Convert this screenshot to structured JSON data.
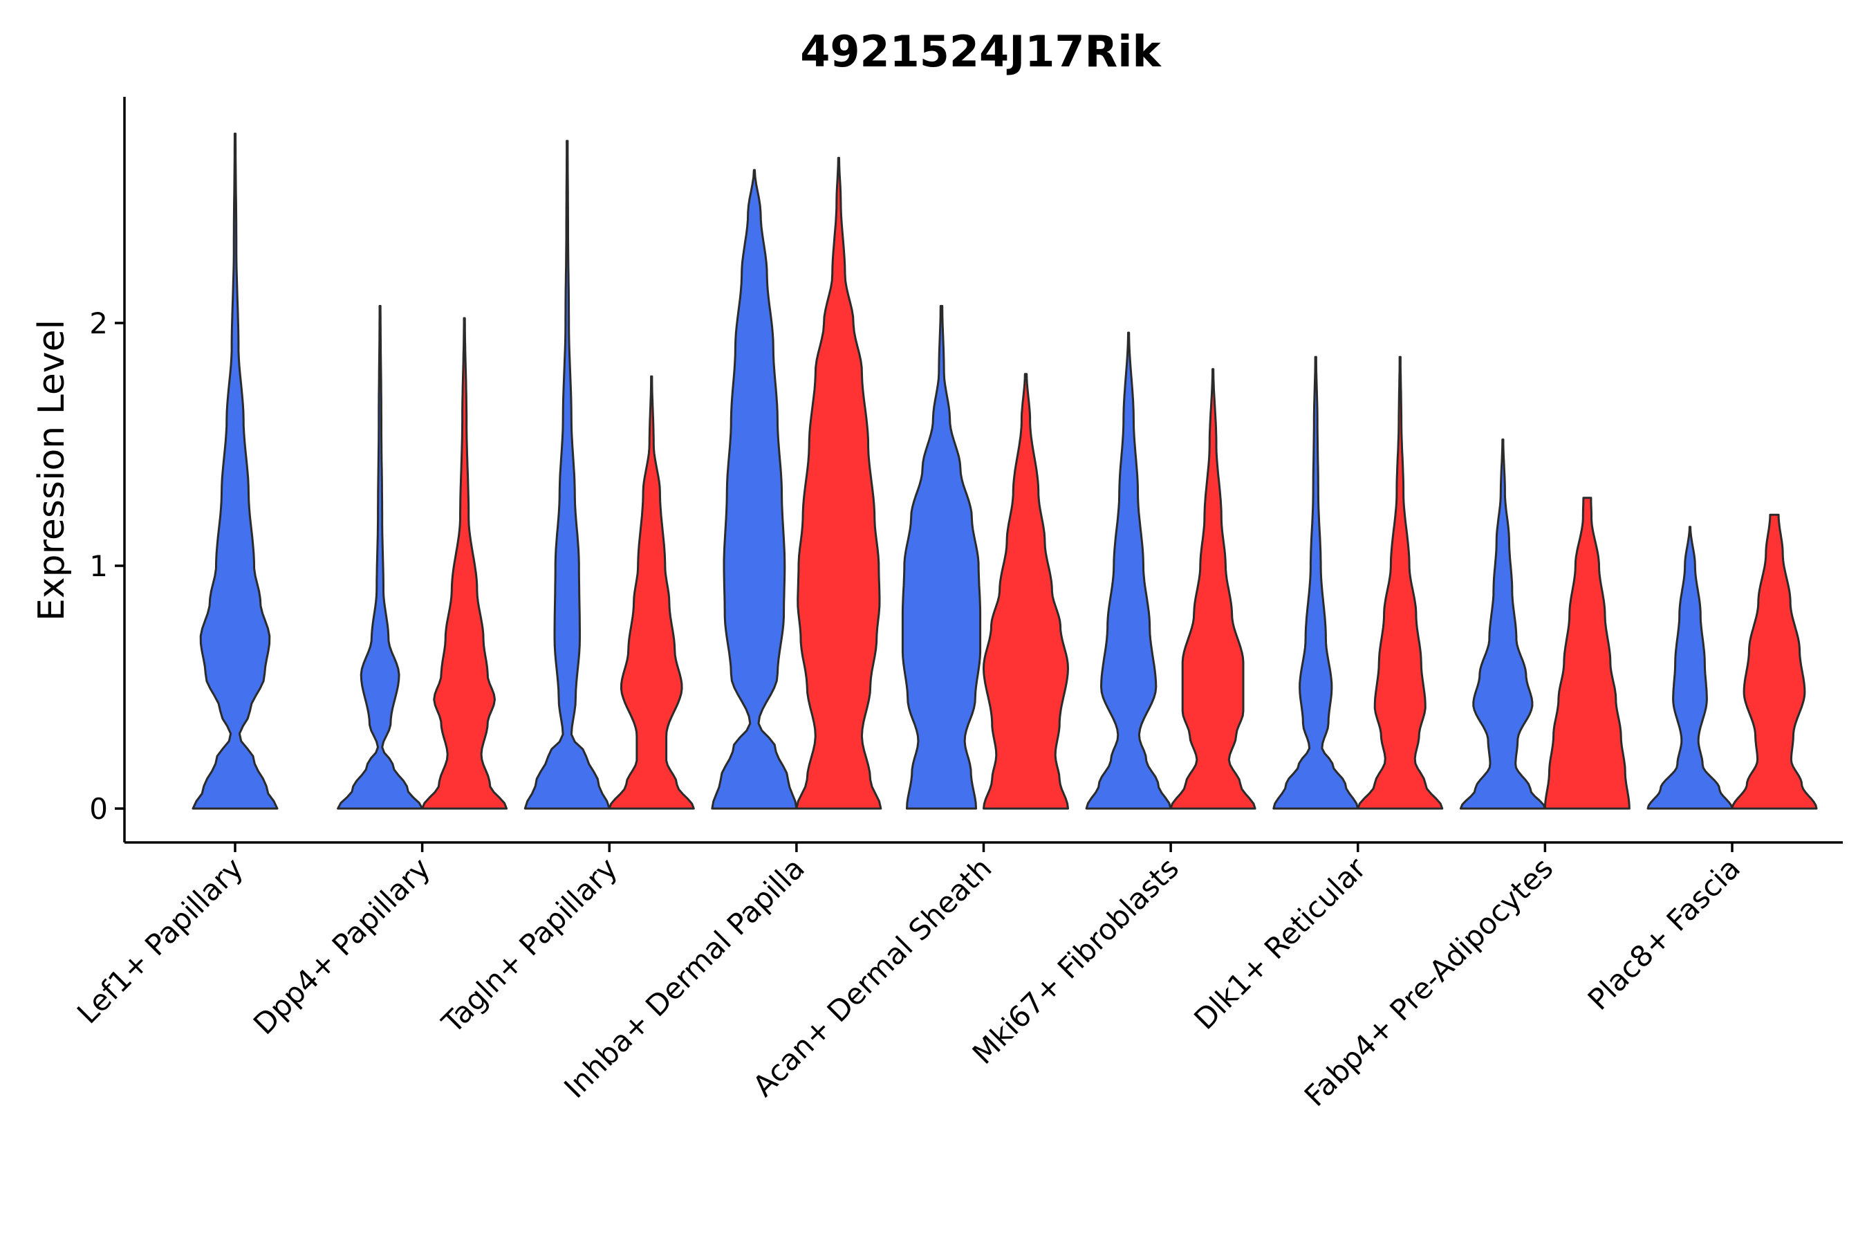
{
  "chart_data": {
    "type": "violin",
    "title": "4921524J17Rik",
    "xlabel": "",
    "ylabel": "Expression Level",
    "ylim": [
      -0.14,
      2.95
    ],
    "yticks": [
      0,
      1,
      2
    ],
    "grid": false,
    "legend": "none",
    "colors": {
      "blue": "#4471EE",
      "red": "#FF3333"
    },
    "categories": [
      "Lef1+ Papillary",
      "Dpp4+ Papillary",
      "Tagln+ Papillary",
      "Inhba+ Dermal Papilla",
      "Acan+ Dermal Sheath",
      "Mki67+ Fibroblasts",
      "Dlk1+ Reticular",
      "Fabp4+ Pre-Adipocytes",
      "Plac8+ Fascia"
    ],
    "series": [
      {
        "color": "blue",
        "violins": [
          {
            "max": 2.78,
            "density": [
              [
                0,
                1.0
              ],
              [
                0.08,
                0.75
              ],
              [
                0.2,
                0.45
              ],
              [
                0.3,
                0.1
              ],
              [
                0.4,
                0.35
              ],
              [
                0.55,
                0.7
              ],
              [
                0.7,
                0.82
              ],
              [
                0.85,
                0.6
              ],
              [
                1.0,
                0.45
              ],
              [
                1.3,
                0.32
              ],
              [
                1.6,
                0.2
              ],
              [
                1.9,
                0.08
              ],
              [
                2.3,
                0.03
              ],
              [
                2.78,
                0.01
              ]
            ]
          },
          {
            "max": 2.07,
            "density": [
              [
                0,
                1.0
              ],
              [
                0.08,
                0.65
              ],
              [
                0.18,
                0.3
              ],
              [
                0.25,
                0.05
              ],
              [
                0.35,
                0.25
              ],
              [
                0.55,
                0.45
              ],
              [
                0.7,
                0.2
              ],
              [
                0.9,
                0.08
              ],
              [
                1.2,
                0.05
              ],
              [
                1.6,
                0.03
              ],
              [
                2.07,
                0.01
              ]
            ]
          },
          {
            "max": 2.75,
            "density": [
              [
                0,
                1.0
              ],
              [
                0.1,
                0.75
              ],
              [
                0.22,
                0.45
              ],
              [
                0.3,
                0.1
              ],
              [
                0.45,
                0.2
              ],
              [
                0.7,
                0.3
              ],
              [
                1.0,
                0.28
              ],
              [
                1.3,
                0.18
              ],
              [
                1.6,
                0.1
              ],
              [
                2.0,
                0.04
              ],
              [
                2.4,
                0.02
              ],
              [
                2.75,
                0.01
              ]
            ]
          },
          {
            "max": 2.63,
            "density": [
              [
                0,
                1.0
              ],
              [
                0.12,
                0.8
              ],
              [
                0.25,
                0.5
              ],
              [
                0.35,
                0.1
              ],
              [
                0.55,
                0.55
              ],
              [
                0.8,
                0.7
              ],
              [
                1.0,
                0.72
              ],
              [
                1.3,
                0.65
              ],
              [
                1.6,
                0.55
              ],
              [
                1.9,
                0.45
              ],
              [
                2.2,
                0.3
              ],
              [
                2.45,
                0.15
              ],
              [
                2.63,
                0.01
              ]
            ]
          },
          {
            "max": 2.07,
            "density": [
              [
                0,
                0.82
              ],
              [
                0.15,
                0.7
              ],
              [
                0.28,
                0.55
              ],
              [
                0.45,
                0.8
              ],
              [
                0.65,
                0.92
              ],
              [
                0.8,
                0.92
              ],
              [
                1.0,
                0.88
              ],
              [
                1.2,
                0.72
              ],
              [
                1.4,
                0.45
              ],
              [
                1.6,
                0.2
              ],
              [
                1.8,
                0.06
              ],
              [
                2.07,
                0.02
              ]
            ]
          },
          {
            "max": 1.96,
            "density": [
              [
                0,
                1.0
              ],
              [
                0.1,
                0.7
              ],
              [
                0.2,
                0.42
              ],
              [
                0.3,
                0.25
              ],
              [
                0.5,
                0.65
              ],
              [
                0.75,
                0.5
              ],
              [
                1.0,
                0.35
              ],
              [
                1.3,
                0.22
              ],
              [
                1.6,
                0.12
              ],
              [
                1.96,
                0.01
              ]
            ]
          },
          {
            "max": 1.86,
            "density": [
              [
                0,
                1.0
              ],
              [
                0.1,
                0.7
              ],
              [
                0.18,
                0.4
              ],
              [
                0.25,
                0.15
              ],
              [
                0.35,
                0.3
              ],
              [
                0.5,
                0.38
              ],
              [
                0.7,
                0.24
              ],
              [
                1.0,
                0.12
              ],
              [
                1.3,
                0.06
              ],
              [
                1.6,
                0.04
              ],
              [
                1.86,
                0.01
              ]
            ]
          },
          {
            "max": 1.52,
            "density": [
              [
                0,
                1.0
              ],
              [
                0.08,
                0.65
              ],
              [
                0.18,
                0.3
              ],
              [
                0.28,
                0.35
              ],
              [
                0.43,
                0.7
              ],
              [
                0.55,
                0.55
              ],
              [
                0.7,
                0.32
              ],
              [
                0.9,
                0.22
              ],
              [
                1.1,
                0.15
              ],
              [
                1.3,
                0.05
              ],
              [
                1.52,
                0.01
              ]
            ]
          },
          {
            "max": 1.16,
            "density": [
              [
                0,
                1.0
              ],
              [
                0.08,
                0.7
              ],
              [
                0.18,
                0.3
              ],
              [
                0.28,
                0.2
              ],
              [
                0.45,
                0.4
              ],
              [
                0.6,
                0.35
              ],
              [
                0.8,
                0.25
              ],
              [
                1.0,
                0.12
              ],
              [
                1.16,
                0.01
              ]
            ]
          }
        ]
      },
      {
        "color": "red",
        "violins": [
          null,
          {
            "max": 2.02,
            "density": [
              [
                0,
                1.0
              ],
              [
                0.1,
                0.6
              ],
              [
                0.22,
                0.4
              ],
              [
                0.35,
                0.55
              ],
              [
                0.45,
                0.72
              ],
              [
                0.55,
                0.55
              ],
              [
                0.7,
                0.45
              ],
              [
                0.9,
                0.3
              ],
              [
                1.2,
                0.1
              ],
              [
                1.6,
                0.05
              ],
              [
                2.02,
                0.01
              ]
            ]
          },
          {
            "max": 1.78,
            "density": [
              [
                0,
                1.0
              ],
              [
                0.1,
                0.6
              ],
              [
                0.2,
                0.35
              ],
              [
                0.3,
                0.35
              ],
              [
                0.5,
                0.72
              ],
              [
                0.65,
                0.55
              ],
              [
                0.85,
                0.42
              ],
              [
                1.0,
                0.32
              ],
              [
                1.3,
                0.2
              ],
              [
                1.5,
                0.05
              ],
              [
                1.78,
                0.01
              ]
            ]
          },
          {
            "max": 2.68,
            "density": [
              [
                0,
                1.0
              ],
              [
                0.12,
                0.75
              ],
              [
                0.3,
                0.55
              ],
              [
                0.5,
                0.75
              ],
              [
                0.7,
                0.9
              ],
              [
                0.85,
                0.97
              ],
              [
                1.0,
                0.95
              ],
              [
                1.2,
                0.85
              ],
              [
                1.5,
                0.7
              ],
              [
                1.8,
                0.55
              ],
              [
                2.0,
                0.35
              ],
              [
                2.2,
                0.15
              ],
              [
                2.5,
                0.05
              ],
              [
                2.68,
                0.01
              ]
            ]
          },
          {
            "max": 1.79,
            "density": [
              [
                0,
                1.0
              ],
              [
                0.12,
                0.8
              ],
              [
                0.22,
                0.7
              ],
              [
                0.35,
                0.8
              ],
              [
                0.58,
                1.0
              ],
              [
                0.75,
                0.82
              ],
              [
                0.9,
                0.62
              ],
              [
                1.1,
                0.45
              ],
              [
                1.3,
                0.3
              ],
              [
                1.6,
                0.1
              ],
              [
                1.79,
                0.02
              ]
            ]
          },
          {
            "max": 1.81,
            "density": [
              [
                0,
                1.0
              ],
              [
                0.1,
                0.65
              ],
              [
                0.2,
                0.38
              ],
              [
                0.3,
                0.55
              ],
              [
                0.4,
                0.72
              ],
              [
                0.6,
                0.72
              ],
              [
                0.8,
                0.45
              ],
              [
                1.0,
                0.3
              ],
              [
                1.2,
                0.2
              ],
              [
                1.5,
                0.08
              ],
              [
                1.81,
                0.01
              ]
            ]
          },
          {
            "max": 1.86,
            "density": [
              [
                0,
                1.0
              ],
              [
                0.1,
                0.6
              ],
              [
                0.2,
                0.35
              ],
              [
                0.3,
                0.45
              ],
              [
                0.42,
                0.6
              ],
              [
                0.6,
                0.5
              ],
              [
                0.8,
                0.38
              ],
              [
                1.0,
                0.22
              ],
              [
                1.3,
                0.08
              ],
              [
                1.6,
                0.03
              ],
              [
                1.86,
                0.01
              ]
            ]
          },
          {
            "max": 1.28,
            "density": [
              [
                0,
                1.0
              ],
              [
                0.15,
                0.9
              ],
              [
                0.3,
                0.8
              ],
              [
                0.45,
                0.68
              ],
              [
                0.6,
                0.55
              ],
              [
                0.8,
                0.42
              ],
              [
                1.0,
                0.28
              ],
              [
                1.2,
                0.1
              ],
              [
                1.28,
                0.09
              ]
            ]
          },
          {
            "max": 1.21,
            "density": [
              [
                0,
                1.0
              ],
              [
                0.1,
                0.65
              ],
              [
                0.2,
                0.4
              ],
              [
                0.3,
                0.45
              ],
              [
                0.48,
                0.72
              ],
              [
                0.65,
                0.6
              ],
              [
                0.85,
                0.38
              ],
              [
                1.05,
                0.2
              ],
              [
                1.21,
                0.1
              ]
            ]
          }
        ]
      }
    ]
  }
}
